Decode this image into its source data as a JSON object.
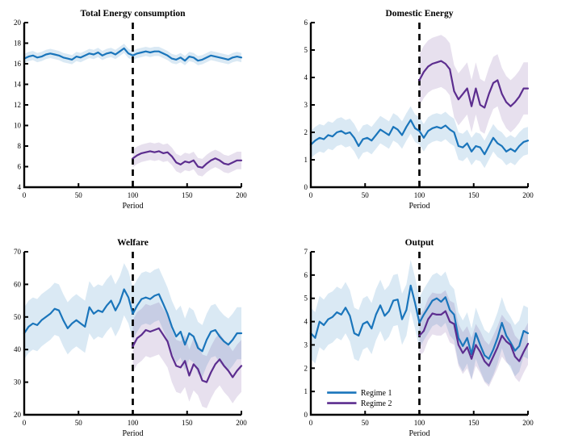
{
  "figure": {
    "background": "#ffffff"
  },
  "colors": {
    "regime1": "#1a75bb",
    "regime2": "#5c2d8f",
    "regime1_band": "rgba(26,117,187,0.16)",
    "regime2_band": "rgba(92,45,143,0.15)",
    "axis": "#000000",
    "vline": "#000000"
  },
  "chart_data": [
    {
      "id": "total-energy-consumption",
      "type": "line",
      "title": "Total Energy consumption",
      "xlabel": "Period",
      "xlim": [
        0,
        200
      ],
      "ylim": [
        4,
        20
      ],
      "xticks": [
        0,
        50,
        100,
        150,
        200
      ],
      "yticks": [
        4,
        6,
        8,
        10,
        12,
        14,
        16,
        18,
        20
      ],
      "vline_x": 100,
      "grid": false,
      "series": [
        {
          "name": "Regime 1",
          "color_key": "regime1",
          "x0": 0,
          "dx": 4,
          "band": 0.45,
          "y": [
            16.5,
            16.7,
            16.8,
            16.6,
            16.7,
            16.9,
            17.0,
            16.9,
            16.8,
            16.6,
            16.5,
            16.4,
            16.7,
            16.6,
            16.8,
            17.0,
            16.9,
            17.1,
            16.8,
            17.0,
            17.1,
            16.9,
            17.2,
            17.5,
            17.0,
            16.8,
            17.0,
            17.1,
            17.2,
            17.1,
            17.2,
            17.2,
            17.0,
            16.8,
            16.5,
            16.4,
            16.6,
            16.3,
            16.7,
            16.6,
            16.3,
            16.4,
            16.6,
            16.8,
            16.7,
            16.6,
            16.5,
            16.4,
            16.6,
            16.7,
            16.6
          ]
        },
        {
          "name": "Regime 2",
          "color_key": "regime2",
          "x0": 100,
          "dx": 4,
          "band": 0.85,
          "y": [
            6.8,
            7.1,
            7.3,
            7.4,
            7.5,
            7.4,
            7.5,
            7.3,
            7.4,
            7.0,
            6.4,
            6.2,
            6.5,
            6.4,
            6.6,
            6.0,
            5.9,
            6.3,
            6.6,
            6.8,
            6.6,
            6.3,
            6.2,
            6.4,
            6.6,
            6.6
          ]
        }
      ]
    },
    {
      "id": "domestic-energy",
      "type": "line",
      "title": "Domestic Energy",
      "xlabel": "Period",
      "xlim": [
        0,
        200
      ],
      "ylim": [
        0,
        6
      ],
      "xticks": [
        0,
        50,
        100,
        150,
        200
      ],
      "yticks": [
        0,
        1,
        2,
        3,
        4,
        5,
        6
      ],
      "vline_x": 100,
      "grid": false,
      "series": [
        {
          "name": "Regime 1",
          "color_key": "regime1",
          "x0": 0,
          "dx": 4,
          "band": 0.5,
          "y": [
            1.55,
            1.7,
            1.8,
            1.75,
            1.9,
            1.85,
            2.0,
            2.05,
            1.95,
            2.0,
            1.8,
            1.5,
            1.75,
            1.8,
            1.7,
            1.9,
            2.1,
            2.0,
            1.9,
            2.2,
            2.1,
            1.9,
            2.2,
            2.45,
            2.15,
            2.05,
            1.8,
            2.05,
            2.15,
            2.2,
            2.15,
            2.25,
            2.1,
            2.0,
            1.5,
            1.45,
            1.6,
            1.3,
            1.5,
            1.45,
            1.2,
            1.5,
            1.8,
            1.6,
            1.5,
            1.3,
            1.4,
            1.3,
            1.5,
            1.65,
            1.7
          ]
        },
        {
          "name": "Regime 2",
          "color_key": "regime2",
          "x0": 100,
          "dx": 4,
          "band": 0.95,
          "y": [
            3.9,
            4.2,
            4.4,
            4.5,
            4.55,
            4.6,
            4.5,
            4.3,
            3.5,
            3.2,
            3.4,
            3.6,
            2.95,
            3.6,
            3.0,
            2.9,
            3.4,
            3.8,
            3.9,
            3.4,
            3.1,
            2.95,
            3.1,
            3.3,
            3.6,
            3.6
          ]
        }
      ]
    },
    {
      "id": "welfare",
      "type": "line",
      "title": "Welfare",
      "xlabel": "Period",
      "xlim": [
        0,
        200
      ],
      "ylim": [
        20,
        70
      ],
      "xticks": [
        0,
        50,
        100,
        150,
        200
      ],
      "yticks": [
        20,
        30,
        40,
        50,
        60,
        70
      ],
      "vline_x": 100,
      "grid": false,
      "series": [
        {
          "name": "Regime 1",
          "color_key": "regime1",
          "x0": 0,
          "dx": 4,
          "band": 8,
          "y": [
            45,
            47,
            48,
            47.5,
            49,
            50,
            51,
            52.5,
            52,
            49,
            46.5,
            48,
            49,
            48,
            47,
            53,
            51,
            52,
            51.5,
            53.5,
            55,
            52,
            54.5,
            58.5,
            56,
            51,
            53.5,
            55.5,
            56,
            55.5,
            56.5,
            57,
            54,
            51,
            47,
            44,
            45.5,
            41.5,
            45,
            44,
            40.5,
            39.5,
            43,
            45.5,
            46,
            44,
            42.5,
            41.5,
            43,
            45,
            45
          ]
        },
        {
          "name": "Regime 2",
          "color_key": "regime2",
          "x0": 100,
          "dx": 4,
          "band": 8,
          "y": [
            41,
            43.5,
            44.5,
            46,
            45.5,
            46,
            46.5,
            44.5,
            42.5,
            38,
            35,
            34.5,
            36.5,
            32,
            35.5,
            34,
            30.5,
            30,
            33,
            35.5,
            37,
            35,
            33.5,
            31.5,
            33.5,
            35
          ]
        }
      ]
    },
    {
      "id": "output",
      "type": "line",
      "title": "Output",
      "xlabel": "Period",
      "xlim": [
        0,
        200
      ],
      "ylim": [
        0,
        7
      ],
      "xticks": [
        0,
        50,
        100,
        150,
        200
      ],
      "yticks": [
        0,
        1,
        2,
        3,
        4,
        5,
        6,
        7
      ],
      "vline_x": 100,
      "grid": false,
      "legend": {
        "position": "southwest",
        "x_line": [
          15,
          42
        ],
        "x_text": 46,
        "y_values": [
          0.95,
          0.5
        ],
        "entries": [
          {
            "label": "Regime 1",
            "color_key": "regime1"
          },
          {
            "label": "Regime 2",
            "color_key": "regime2"
          }
        ]
      },
      "series": [
        {
          "name": "Regime 1",
          "color_key": "regime1",
          "x0": 0,
          "dx": 4,
          "band": 1.1,
          "y": [
            3.5,
            3.3,
            4.0,
            3.85,
            4.1,
            4.2,
            4.4,
            4.3,
            4.6,
            4.25,
            3.5,
            3.4,
            3.9,
            4.0,
            3.7,
            4.3,
            4.7,
            4.25,
            4.45,
            4.9,
            4.95,
            4.1,
            4.5,
            5.55,
            4.8,
            3.95,
            4.3,
            4.6,
            4.9,
            5.0,
            4.85,
            5.05,
            4.5,
            4.3,
            3.3,
            2.95,
            3.3,
            2.6,
            3.5,
            3.0,
            2.55,
            2.4,
            2.8,
            3.3,
            3.95,
            3.4,
            3.1,
            2.75,
            2.95,
            3.6,
            3.5
          ]
        },
        {
          "name": "Regime 2",
          "color_key": "regime2",
          "x0": 100,
          "dx": 4,
          "band": 0.9,
          "y": [
            3.4,
            3.6,
            4.1,
            4.35,
            4.3,
            4.3,
            4.45,
            4.0,
            3.9,
            3.0,
            2.65,
            2.9,
            2.4,
            3.0,
            2.7,
            2.3,
            2.1,
            2.5,
            2.9,
            3.4,
            3.15,
            3.0,
            2.5,
            2.3,
            2.7,
            3.05
          ]
        }
      ]
    }
  ]
}
